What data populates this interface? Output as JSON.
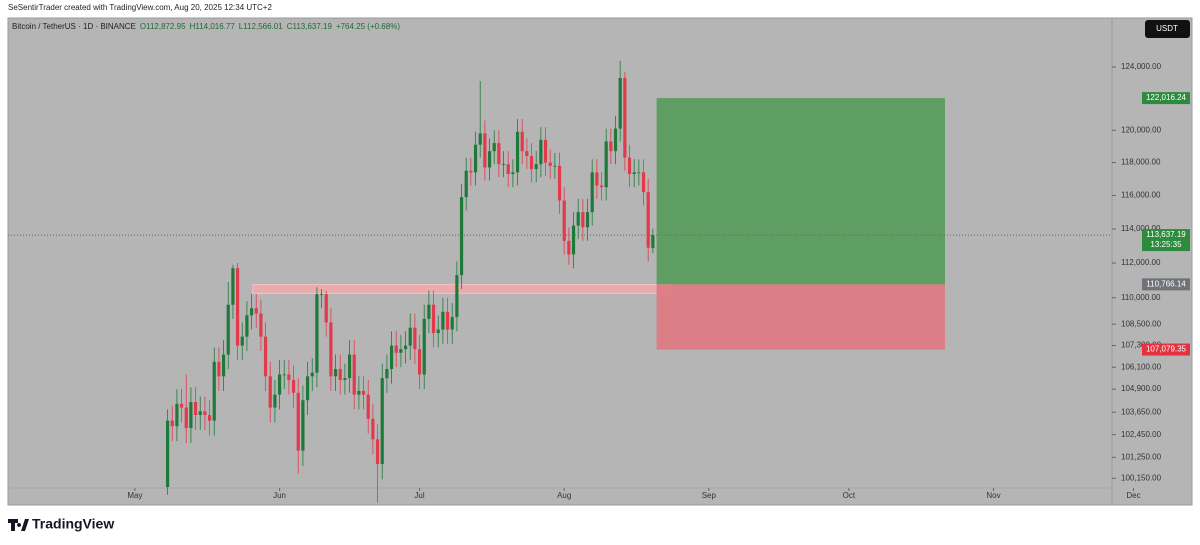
{
  "header": {
    "credit": "SeSentirTrader created with TradingView.com, Aug 20, 2025 12:34 UTC+2",
    "symbol": "Bitcoin / TetherUS · 1D · BINANCE",
    "open": "O112,872.95",
    "high": "H114,016.77",
    "low": "L112,566.01",
    "close": "C113,637.19",
    "change": "+764.25 (+0.68%)",
    "currency": "USDT"
  },
  "footer": {
    "brand": "TradingView"
  },
  "chart_data": {
    "type": "candlestick",
    "log_scale": true,
    "up_color": "#1f7a3a",
    "down_color": "#e23a4b",
    "open": [
      99700,
      103200,
      102900,
      104100,
      103900,
      102800,
      104200,
      103500,
      103700,
      103500,
      103200,
      106400,
      105600,
      106800,
      109600,
      111700,
      107300,
      107800,
      109000,
      109400,
      109100,
      107800,
      105600,
      103900,
      104600,
      105700,
      105700,
      105400,
      104700,
      101600,
      104300,
      105600,
      105800,
      110200,
      110200,
      108600,
      105600,
      106000,
      105400,
      105500,
      106800,
      104600,
      104800,
      104600,
      103300,
      102200,
      100900,
      105500,
      106000,
      107300,
      106900,
      107100,
      107300,
      108300,
      107100,
      105700,
      108800,
      109600,
      108000,
      108200,
      109200,
      108200,
      108900,
      111300,
      115900,
      117500,
      117400,
      119100,
      119800,
      117700,
      118700,
      119200,
      117900,
      117900,
      117300,
      117400,
      119900,
      118700,
      118400,
      117600,
      117900,
      119400,
      118000,
      117800,
      117800,
      115700,
      113300,
      112500,
      114200,
      115000,
      114100,
      115000,
      117400,
      116600,
      116500,
      119300,
      118700,
      120100,
      123300,
      118300,
      117300,
      117400,
      117400,
      116200,
      112872.95
    ],
    "high": [
      103800,
      104000,
      104900,
      104900,
      105700,
      105000,
      105000,
      104500,
      104500,
      104300,
      107200,
      107200,
      107600,
      110900,
      111900,
      112000,
      108600,
      109800,
      110200,
      110200,
      109900,
      108600,
      106400,
      105400,
      106500,
      106500,
      106500,
      106200,
      105500,
      105100,
      106400,
      106600,
      110600,
      110500,
      110400,
      109400,
      106800,
      106800,
      106300,
      107600,
      107600,
      105600,
      105600,
      105400,
      104100,
      103000,
      106300,
      106800,
      108100,
      108100,
      107900,
      108100,
      109100,
      109100,
      107900,
      109600,
      110400,
      110400,
      109000,
      110000,
      110000,
      109700,
      112100,
      116700,
      118300,
      118300,
      119900,
      123100,
      120600,
      119500,
      120000,
      120000,
      118700,
      118700,
      118200,
      120700,
      120700,
      119500,
      119200,
      118700,
      120200,
      120200,
      118800,
      118600,
      118600,
      116500,
      114100,
      115000,
      115800,
      115800,
      115800,
      118200,
      118200,
      117400,
      120100,
      120100,
      120900,
      124400,
      123700,
      119100,
      118200,
      118200,
      118200,
      117000,
      114016.77
    ],
    "low": [
      99300,
      102100,
      102100,
      103100,
      102000,
      102000,
      102700,
      102700,
      102700,
      102400,
      102400,
      104800,
      104800,
      106000,
      108800,
      106500,
      106500,
      107000,
      108200,
      108300,
      107000,
      104800,
      103100,
      103100,
      103800,
      104900,
      104600,
      103900,
      100400,
      100800,
      103500,
      104800,
      105000,
      109400,
      107800,
      104800,
      104800,
      104600,
      104600,
      104700,
      103800,
      103800,
      103800,
      102500,
      101400,
      98900,
      100100,
      104700,
      105200,
      106100,
      106100,
      106300,
      106500,
      106300,
      104900,
      104900,
      108000,
      107200,
      107200,
      107400,
      107400,
      107400,
      108100,
      110500,
      115100,
      116600,
      116600,
      118300,
      116900,
      116900,
      117900,
      117100,
      117100,
      116500,
      116500,
      116600,
      117900,
      117600,
      116800,
      116800,
      117100,
      117200,
      117000,
      117000,
      114900,
      112500,
      111900,
      111700,
      113400,
      113300,
      113300,
      114200,
      115800,
      115700,
      115700,
      117900,
      117900,
      119300,
      117500,
      116500,
      116500,
      116600,
      115400,
      112100,
      112566.01
    ],
    "close": [
      103200,
      102900,
      104100,
      103900,
      102800,
      104200,
      103500,
      103700,
      103500,
      103200,
      106400,
      105600,
      106800,
      109600,
      111700,
      107300,
      107800,
      109000,
      109400,
      109100,
      107800,
      105600,
      103900,
      104600,
      105700,
      105700,
      105400,
      104700,
      101600,
      104300,
      105600,
      105800,
      110200,
      110200,
      108600,
      105600,
      106000,
      105400,
      105500,
      106800,
      104600,
      104800,
      104600,
      103300,
      102200,
      100900,
      105500,
      106000,
      107300,
      106900,
      107100,
      107300,
      108300,
      107100,
      105700,
      108800,
      109600,
      108000,
      108200,
      109200,
      108200,
      108900,
      111300,
      115900,
      117500,
      117400,
      119100,
      119800,
      117700,
      118700,
      119200,
      117900,
      117900,
      117300,
      117400,
      119900,
      118700,
      118400,
      117600,
      117900,
      119400,
      118000,
      117800,
      117800,
      115700,
      113300,
      112500,
      114200,
      115000,
      114100,
      115000,
      117400,
      116600,
      116500,
      119300,
      118700,
      120100,
      123300,
      118300,
      117300,
      117400,
      117400,
      116200,
      112900,
      113637.19
    ],
    "xlim": [
      -34.2,
      202.4
    ],
    "xticks": [
      {
        "value": -7,
        "label": "May"
      },
      {
        "value": 24,
        "label": "Jun"
      },
      {
        "value": 54,
        "label": "Jul"
      },
      {
        "value": 85,
        "label": "Aug"
      },
      {
        "value": 116,
        "label": "Sep"
      },
      {
        "value": 146,
        "label": "Oct"
      },
      {
        "value": 177,
        "label": "Nov"
      },
      {
        "value": 207,
        "label": "Dec"
      }
    ],
    "ylim": [
      99650,
      127200
    ],
    "yticks": [
      {
        "value": 124000,
        "label": "124,000.00"
      },
      {
        "value": 120000,
        "label": "120,000.00"
      },
      {
        "value": 118000,
        "label": "118,000.00"
      },
      {
        "value": 116000,
        "label": "116,000.00"
      },
      {
        "value": 114000,
        "label": "114,000.00"
      },
      {
        "value": 112000,
        "label": "112,000.00"
      },
      {
        "value": 110000,
        "label": "110,000.00"
      },
      {
        "value": 108500,
        "label": "108,500.00"
      },
      {
        "value": 107300,
        "label": "107,300.00"
      },
      {
        "value": 106100,
        "label": "106,100.00"
      },
      {
        "value": 104900,
        "label": "104,900.00"
      },
      {
        "value": 103650,
        "label": "103,650.00"
      },
      {
        "value": 102450,
        "label": "102,450.00"
      },
      {
        "value": 101250,
        "label": "101,250.00"
      },
      {
        "value": 100150,
        "label": "100,150.00"
      }
    ],
    "zone": {
      "top": 110750,
      "bottom": 110250,
      "color": "#f2a9aa"
    },
    "position": {
      "target": {
        "value": 122016.24,
        "label": "122,016.24"
      },
      "entry": {
        "value": 110766.14,
        "label": "110,766.14"
      },
      "stop": {
        "value": 107079.35,
        "label": "107,079.35"
      },
      "profit_color": "#4f9a55",
      "loss_color": "#e07880",
      "entry_color": "#6f7377"
    },
    "last_price": {
      "value": 113637.19,
      "label": "113,637.19",
      "countdown": "13:25:35",
      "color": "#2e8b3e"
    }
  }
}
